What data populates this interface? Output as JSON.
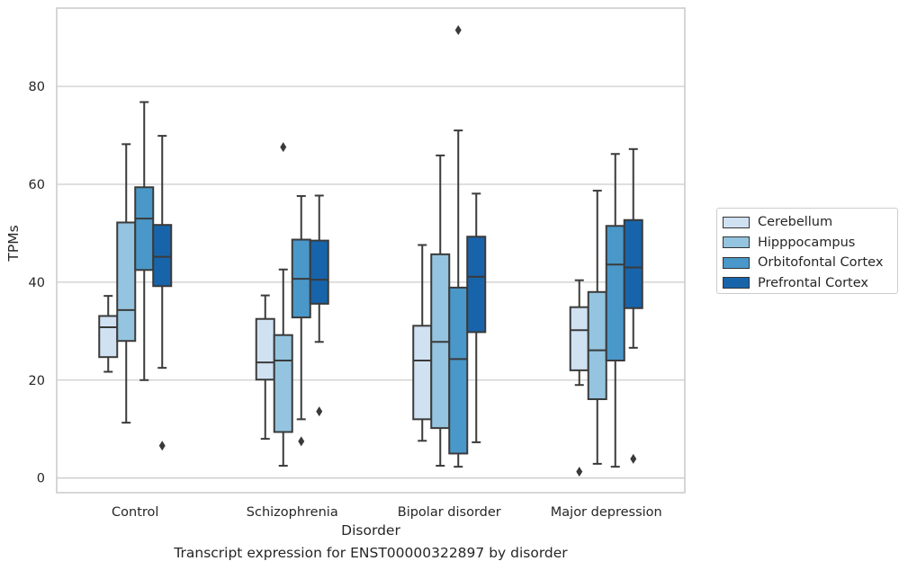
{
  "caption": "Transcript expression for ENST00000322897 by disorder",
  "chart_data": {
    "type": "box",
    "xlabel": "Disorder",
    "ylabel": "TPMs",
    "ylim": [
      -3,
      96
    ],
    "yticks": [
      0,
      20,
      40,
      60,
      80
    ],
    "grid": "horizontal",
    "legend_position": "center-right",
    "categories": [
      "Control",
      "Schizophrenia",
      "Bipolar disorder",
      "Major depression"
    ],
    "series": [
      {
        "name": "Cerebellum",
        "color": "#d0e1f2",
        "boxes": [
          {
            "whisker_low": 21.7,
            "q1": 24.7,
            "median": 30.8,
            "q3": 33.1,
            "whisker_high": 37.2,
            "outliers": []
          },
          {
            "whisker_low": 8.0,
            "q1": 20.1,
            "median": 23.6,
            "q3": 32.5,
            "whisker_high": 37.3,
            "outliers": []
          },
          {
            "whisker_low": 7.6,
            "q1": 12.0,
            "median": 24.0,
            "q3": 31.1,
            "whisker_high": 47.6,
            "outliers": []
          },
          {
            "whisker_low": 19.0,
            "q1": 22.0,
            "median": 30.2,
            "q3": 34.9,
            "whisker_high": 40.4,
            "outliers": [
              1.3
            ]
          }
        ]
      },
      {
        "name": "Hipppocampus",
        "color": "#94c4df",
        "boxes": [
          {
            "whisker_low": 11.3,
            "q1": 28.0,
            "median": 34.3,
            "q3": 52.2,
            "whisker_high": 68.2,
            "outliers": []
          },
          {
            "whisker_low": 2.5,
            "q1": 9.4,
            "median": 24.0,
            "q3": 29.2,
            "whisker_high": 42.6,
            "outliers": [
              67.6
            ]
          },
          {
            "whisker_low": 2.5,
            "q1": 10.2,
            "median": 27.8,
            "q3": 45.7,
            "whisker_high": 65.9,
            "outliers": []
          },
          {
            "whisker_low": 2.9,
            "q1": 16.1,
            "median": 26.1,
            "q3": 38.0,
            "whisker_high": 58.7,
            "outliers": []
          }
        ]
      },
      {
        "name": "Orbitofontal Cortex",
        "color": "#4a98c9",
        "boxes": [
          {
            "whisker_low": 20.0,
            "q1": 42.5,
            "median": 53.0,
            "q3": 59.4,
            "whisker_high": 76.8,
            "outliers": []
          },
          {
            "whisker_low": 12.0,
            "q1": 32.8,
            "median": 40.7,
            "q3": 48.7,
            "whisker_high": 57.6,
            "outliers": [
              7.5
            ]
          },
          {
            "whisker_low": 2.3,
            "q1": 5.0,
            "median": 24.3,
            "q3": 38.9,
            "whisker_high": 71.0,
            "outliers": [
              91.5
            ]
          },
          {
            "whisker_low": 2.3,
            "q1": 24.0,
            "median": 43.6,
            "q3": 51.5,
            "whisker_high": 66.2,
            "outliers": []
          }
        ]
      },
      {
        "name": "Prefrontal Cortex",
        "color": "#1764ab",
        "boxes": [
          {
            "whisker_low": 22.5,
            "q1": 39.2,
            "median": 45.2,
            "q3": 51.7,
            "whisker_high": 69.9,
            "outliers": [
              6.6
            ]
          },
          {
            "whisker_low": 27.8,
            "q1": 35.6,
            "median": 40.5,
            "q3": 48.5,
            "whisker_high": 57.7,
            "outliers": [
              13.6
            ]
          },
          {
            "whisker_low": 7.3,
            "q1": 29.8,
            "median": 41.1,
            "q3": 49.3,
            "whisker_high": 58.1,
            "outliers": []
          },
          {
            "whisker_low": 26.6,
            "q1": 34.7,
            "median": 43.0,
            "q3": 52.7,
            "whisker_high": 67.2,
            "outliers": [
              3.9
            ]
          }
        ]
      }
    ]
  }
}
